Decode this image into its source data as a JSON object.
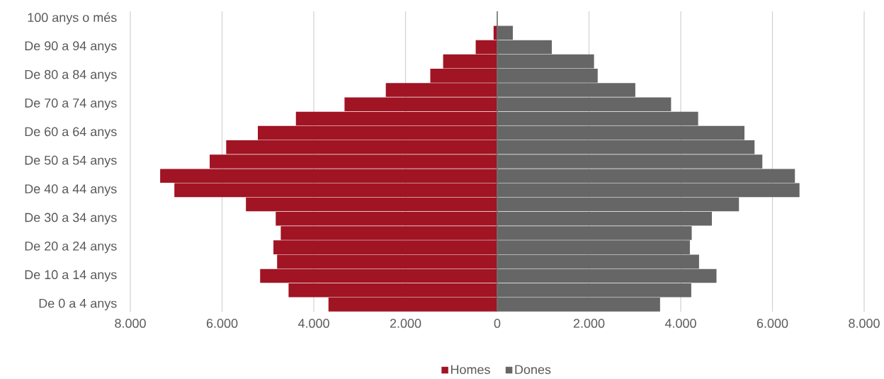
{
  "chart_data": {
    "type": "bar",
    "orientation": "horizontal",
    "categories": [
      "100 anys o més",
      null,
      "De 90 a 94 anys",
      null,
      "De 80 a 84 anys",
      null,
      "De 70 a 74 anys",
      null,
      "De 60 a 64 anys",
      null,
      "De 50 a 54 anys",
      null,
      "De 40 a 44 anys",
      null,
      "De 30 a 34 anys",
      null,
      "De 20 a 24 anys",
      null,
      "De 10 a 14 anys",
      null,
      "De 0 a 4 anys"
    ],
    "series": [
      {
        "name": "Homes",
        "color": "#a01423",
        "values": [
          0,
          -80,
          -470,
          -1180,
          -1460,
          -2430,
          -3330,
          -4390,
          -5220,
          -5910,
          -6270,
          -7350,
          -7040,
          -5480,
          -4830,
          -4720,
          -4880,
          -4800,
          -5170,
          -4550,
          -3680
        ]
      },
      {
        "name": "Dones",
        "color": "#666666",
        "values": [
          0,
          340,
          1190,
          2110,
          2190,
          3010,
          3790,
          4380,
          5390,
          5610,
          5780,
          6490,
          6590,
          5270,
          4680,
          4240,
          4200,
          4400,
          4780,
          4230,
          3550
        ]
      }
    ],
    "xlim": [
      -8000,
      8000
    ],
    "xticks": [
      {
        "value": -8000,
        "label": "8.000"
      },
      {
        "value": -6000,
        "label": "6.000"
      },
      {
        "value": -4000,
        "label": "4.000"
      },
      {
        "value": -2000,
        "label": "2.000"
      },
      0,
      {
        "value": 2000,
        "label": "2.000"
      },
      {
        "value": 4000,
        "label": "4.000"
      },
      {
        "value": 6000,
        "label": "6.000"
      },
      {
        "value": 8000,
        "label": "8.000"
      }
    ],
    "grid": "x",
    "legend": "bottom",
    "stacked": true
  }
}
